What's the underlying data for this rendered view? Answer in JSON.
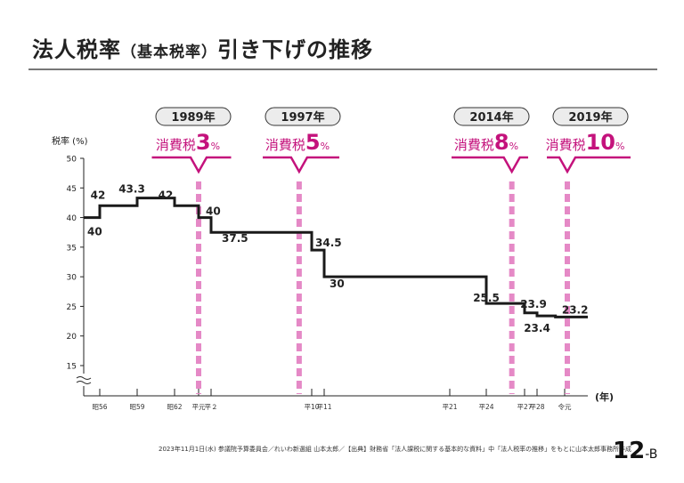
{
  "title": {
    "main1": "法人税率",
    "sub": "（基本税率）",
    "main2": "引き下げの推移"
  },
  "footer": "2023年11月1日(水) 参議院予算委員会／れいわ新選組 山本太郎／【出典】財務省「法人課税に関する基本的な資料」中「法人税率の推移」をもとに山本太郎事務所作成",
  "page": {
    "num": "12",
    "suffix": "-B"
  },
  "colors": {
    "accent": "#c4127c",
    "dash": "#e589c6",
    "line": "#1a1a1a",
    "pill": "#ececec"
  },
  "chart_data": {
    "type": "line",
    "step": true,
    "title": "法人税率（基本税率）引き下げの推移",
    "ylabel": "税率 (%)",
    "xlabel": "(年)",
    "ylim": [
      15,
      50
    ],
    "yticks": [
      15,
      20,
      25,
      30,
      35,
      40,
      45,
      50
    ],
    "xticks": [
      {
        "year": 1981,
        "label": "昭56"
      },
      {
        "year": 1984,
        "label": "昭59"
      },
      {
        "year": 1987,
        "label": "昭62"
      },
      {
        "year": 1989,
        "label": "平元"
      },
      {
        "year": 1990,
        "label": "平２"
      },
      {
        "year": 1998,
        "label": "平10"
      },
      {
        "year": 1999,
        "label": "平11"
      },
      {
        "year": 2009,
        "label": "平21"
      },
      {
        "year": 2012,
        "label": "平24"
      },
      {
        "year": 2015,
        "label": "平27"
      },
      {
        "year": 2016,
        "label": "平28"
      },
      {
        "year": 2019,
        "label": "令元"
      }
    ],
    "series": [
      {
        "name": "法人税率",
        "points": [
          {
            "year": 1980,
            "value": 40,
            "label": "40"
          },
          {
            "year": 1981,
            "value": 42,
            "label": "42"
          },
          {
            "year": 1984,
            "value": 43.3,
            "label": "43.3"
          },
          {
            "year": 1987,
            "value": 42,
            "label": "42"
          },
          {
            "year": 1989,
            "value": 40,
            "label": "40"
          },
          {
            "year": 1990,
            "value": 37.5,
            "label": "37.5"
          },
          {
            "year": 1998,
            "value": 34.5,
            "label": "34.5"
          },
          {
            "year": 1999,
            "value": 30,
            "label": "30"
          },
          {
            "year": 2012,
            "value": 25.5,
            "label": "25.5"
          },
          {
            "year": 2015,
            "value": 23.9,
            "label": "23.9"
          },
          {
            "year": 2016,
            "value": 23.4,
            "label": "23.4"
          },
          {
            "year": 2018,
            "value": 23.2,
            "label": "23.2"
          }
        ],
        "end_year": 2020
      }
    ],
    "annotations": [
      {
        "year": 1989,
        "year_label": "1989年",
        "prefix": "消費税",
        "rate": "3",
        "unit": "%"
      },
      {
        "year": 1997,
        "year_label": "1997年",
        "prefix": "消費税",
        "rate": "5",
        "unit": "%"
      },
      {
        "year": 2014,
        "year_label": "2014年",
        "prefix": "消費税",
        "rate": "8",
        "unit": "%"
      },
      {
        "year": 2019,
        "year_label": "2019年",
        "prefix": "消費税",
        "rate": "10",
        "unit": "%"
      }
    ]
  }
}
